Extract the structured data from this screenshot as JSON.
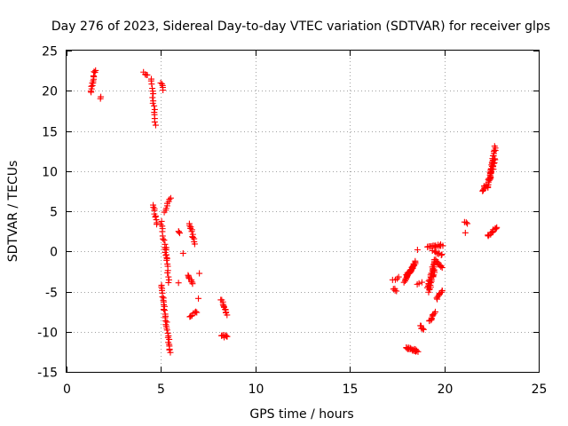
{
  "chart_data": {
    "type": "scatter",
    "title": "Day 276 of 2023, Sidereal Day-to-day VTEC variation (SDTVAR) for receiver glps",
    "xlabel": "GPS time / hours",
    "ylabel": "SDTVAR / TECUs",
    "xlim": [
      0,
      25
    ],
    "ylim": [
      -15,
      25
    ],
    "xticks": [
      "0",
      "5",
      "10",
      "15",
      "20",
      "25"
    ],
    "yticks": [
      "-15",
      "-10",
      "-5",
      "0",
      "5",
      "10",
      "15",
      "20",
      "25"
    ],
    "grid": true,
    "marker": "+",
    "color": "#ff0000",
    "series": [
      {
        "name": "SDTVAR",
        "segments": [
          {
            "from": [
              1.3,
              19.8
            ],
            "to": [
              1.5,
              22.6
            ],
            "n": 14
          },
          {
            "from": [
              1.8,
              19.0
            ],
            "to": [
              1.8,
              19.3
            ],
            "n": 2
          },
          {
            "from": [
              4.1,
              22.2
            ],
            "to": [
              4.3,
              21.9
            ],
            "n": 4
          },
          {
            "from": [
              4.5,
              21.5
            ],
            "to": [
              4.7,
              15.8
            ],
            "n": 16
          },
          {
            "from": [
              5.0,
              20.9
            ],
            "to": [
              5.1,
              20.2
            ],
            "n": 5
          },
          {
            "from": [
              4.6,
              5.8
            ],
            "to": [
              4.8,
              3.3
            ],
            "n": 10
          },
          {
            "from": [
              5.0,
              3.8
            ],
            "to": [
              5.3,
              -0.8
            ],
            "n": 14
          },
          {
            "from": [
              5.2,
              5.0
            ],
            "to": [
              5.5,
              6.6
            ],
            "n": 8
          },
          {
            "from": [
              5.3,
              0.5
            ],
            "to": [
              5.4,
              -4.0
            ],
            "n": 12
          },
          {
            "from": [
              5.0,
              -4.2
            ],
            "to": [
              5.5,
              -12.6
            ],
            "n": 32
          },
          {
            "from": [
              5.9,
              2.6
            ],
            "to": [
              6.0,
              2.4
            ],
            "n": 3
          },
          {
            "from": [
              6.2,
              -0.3
            ],
            "to": [
              6.2,
              -0.3
            ],
            "n": 1
          },
          {
            "from": [
              5.9,
              -3.8
            ],
            "to": [
              5.9,
              -3.8
            ],
            "n": 1
          },
          {
            "from": [
              6.5,
              3.5
            ],
            "to": [
              6.8,
              1.0
            ],
            "n": 12
          },
          {
            "from": [
              6.4,
              -3.0
            ],
            "to": [
              6.7,
              -4.0
            ],
            "n": 8
          },
          {
            "from": [
              6.5,
              -8.2
            ],
            "to": [
              6.9,
              -7.5
            ],
            "n": 8
          },
          {
            "from": [
              7.0,
              -2.7
            ],
            "to": [
              7.0,
              -2.7
            ],
            "n": 1
          },
          {
            "from": [
              7.0,
              -5.8
            ],
            "to": [
              7.0,
              -5.8
            ],
            "n": 1
          },
          {
            "from": [
              8.2,
              -6.0
            ],
            "to": [
              8.5,
              -7.8
            ],
            "n": 12
          },
          {
            "from": [
              8.2,
              -10.4
            ],
            "to": [
              8.5,
              -10.7
            ],
            "n": 8
          },
          {
            "from": [
              17.3,
              -3.5
            ],
            "to": [
              17.6,
              -3.3
            ],
            "n": 4
          },
          {
            "from": [
              17.3,
              -4.6
            ],
            "to": [
              17.5,
              -4.9
            ],
            "n": 4
          },
          {
            "from": [
              17.9,
              -3.8
            ],
            "to": [
              18.5,
              -1.2
            ],
            "n": 24
          },
          {
            "from": [
              18.0,
              -3.0
            ],
            "to": [
              18.4,
              -1.8
            ],
            "n": 14
          },
          {
            "from": [
              18.0,
              -12.0
            ],
            "to": [
              18.6,
              -12.4
            ],
            "n": 18
          },
          {
            "from": [
              18.6,
              0.2
            ],
            "to": [
              18.6,
              0.2
            ],
            "n": 1
          },
          {
            "from": [
              18.6,
              -4.1
            ],
            "to": [
              18.8,
              -3.9
            ],
            "n": 3
          },
          {
            "from": [
              18.7,
              -9.2
            ],
            "to": [
              18.9,
              -9.8
            ],
            "n": 6
          },
          {
            "from": [
              19.1,
              -4.6
            ],
            "to": [
              19.5,
              -1.2
            ],
            "n": 22
          },
          {
            "from": [
              19.2,
              -5.0
            ],
            "to": [
              19.5,
              -2.2
            ],
            "n": 14
          },
          {
            "from": [
              19.1,
              0.5
            ],
            "to": [
              19.9,
              0.8
            ],
            "n": 16
          },
          {
            "from": [
              19.4,
              0.0
            ],
            "to": [
              19.9,
              -0.4
            ],
            "n": 8
          },
          {
            "from": [
              19.5,
              -1.0
            ],
            "to": [
              19.9,
              -2.0
            ],
            "n": 10
          },
          {
            "from": [
              19.2,
              -8.7
            ],
            "to": [
              19.5,
              -7.6
            ],
            "n": 10
          },
          {
            "from": [
              19.6,
              -6.0
            ],
            "to": [
              19.9,
              -4.8
            ],
            "n": 10
          },
          {
            "from": [
              21.1,
              3.7
            ],
            "to": [
              21.2,
              3.4
            ],
            "n": 3
          },
          {
            "from": [
              21.1,
              2.4
            ],
            "to": [
              21.1,
              2.4
            ],
            "n": 1
          },
          {
            "from": [
              22.0,
              7.5
            ],
            "to": [
              22.2,
              8.3
            ],
            "n": 8
          },
          {
            "from": [
              22.3,
              8.0
            ],
            "to": [
              22.7,
              13.0
            ],
            "n": 30
          },
          {
            "from": [
              22.4,
              9.0
            ],
            "to": [
              22.7,
              11.5
            ],
            "n": 14
          },
          {
            "from": [
              22.3,
              1.9
            ],
            "to": [
              22.8,
              3.0
            ],
            "n": 12
          }
        ]
      }
    ]
  }
}
